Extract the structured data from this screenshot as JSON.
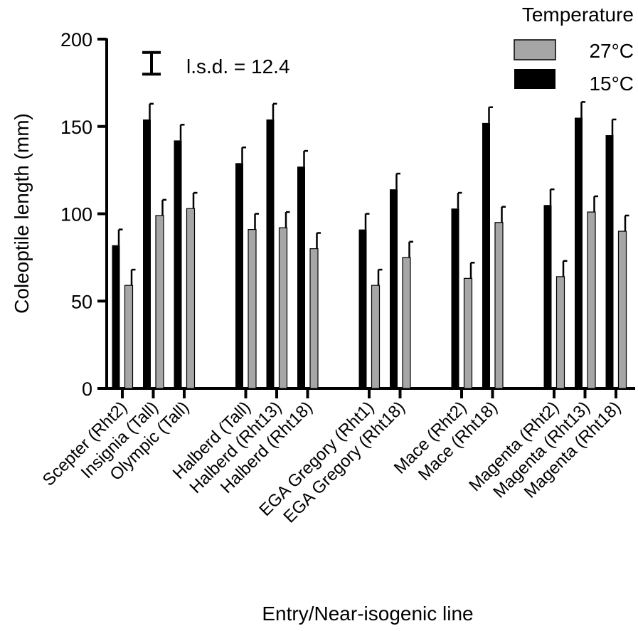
{
  "chart_data": {
    "type": "bar",
    "title": "",
    "xlabel": "Entry/Near-isogenic line",
    "ylabel": "Coleoptile length (mm)",
    "ylim": [
      0,
      200
    ],
    "yticks": [
      0,
      50,
      100,
      150,
      200
    ],
    "grid": false,
    "legend": {
      "title": "Temperature",
      "placement": "top-right",
      "entries": [
        {
          "name": "27°C",
          "color": "#a6a6a6"
        },
        {
          "name": "15°C",
          "color": "#000000"
        }
      ]
    },
    "annotation": "l.s.d. = 12.4",
    "lsd_value": 12.4,
    "groups": [
      {
        "categories": [
          "Scepter (Rht2)",
          "Insignia (Tall)",
          "Olympic (Tall)"
        ]
      },
      {
        "categories": [
          "Halberd (Tall)",
          "Halberd (Rht13)",
          "Halberd (Rht18)"
        ]
      },
      {
        "categories": [
          "EGA Gregory (Rht1)",
          "EGA Gregory (Rht18)"
        ]
      },
      {
        "categories": [
          "Mace (Rht2)",
          "Mace (Rht18)"
        ]
      },
      {
        "categories": [
          "Magenta (Rht2)",
          "Magenta (Rht13)",
          "Magenta (Rht18)"
        ]
      }
    ],
    "categories": [
      "Scepter (Rht2)",
      "Insignia (Tall)",
      "Olympic (Tall)",
      "Halberd (Tall)",
      "Halberd (Rht13)",
      "Halberd (Rht18)",
      "EGA Gregory (Rht1)",
      "EGA Gregory (Rht18)",
      "Mace (Rht2)",
      "Mace (Rht18)",
      "Magenta (Rht2)",
      "Magenta (Rht13)",
      "Magenta (Rht18)"
    ],
    "series": [
      {
        "name": "15°C",
        "color": "#000000",
        "values": [
          82,
          154,
          142,
          129,
          154,
          127,
          91,
          114,
          103,
          152,
          105,
          155,
          145
        ],
        "errors": [
          9,
          9,
          9,
          9,
          9,
          9,
          9,
          9,
          9,
          9,
          9,
          9,
          9
        ]
      },
      {
        "name": "27°C",
        "color": "#a6a6a6",
        "values": [
          59,
          99,
          103,
          91,
          92,
          80,
          59,
          75,
          63,
          95,
          64,
          101,
          90
        ],
        "errors": [
          9,
          9,
          9,
          9,
          9,
          9,
          9,
          9,
          9,
          9,
          9,
          9,
          9
        ]
      }
    ]
  }
}
